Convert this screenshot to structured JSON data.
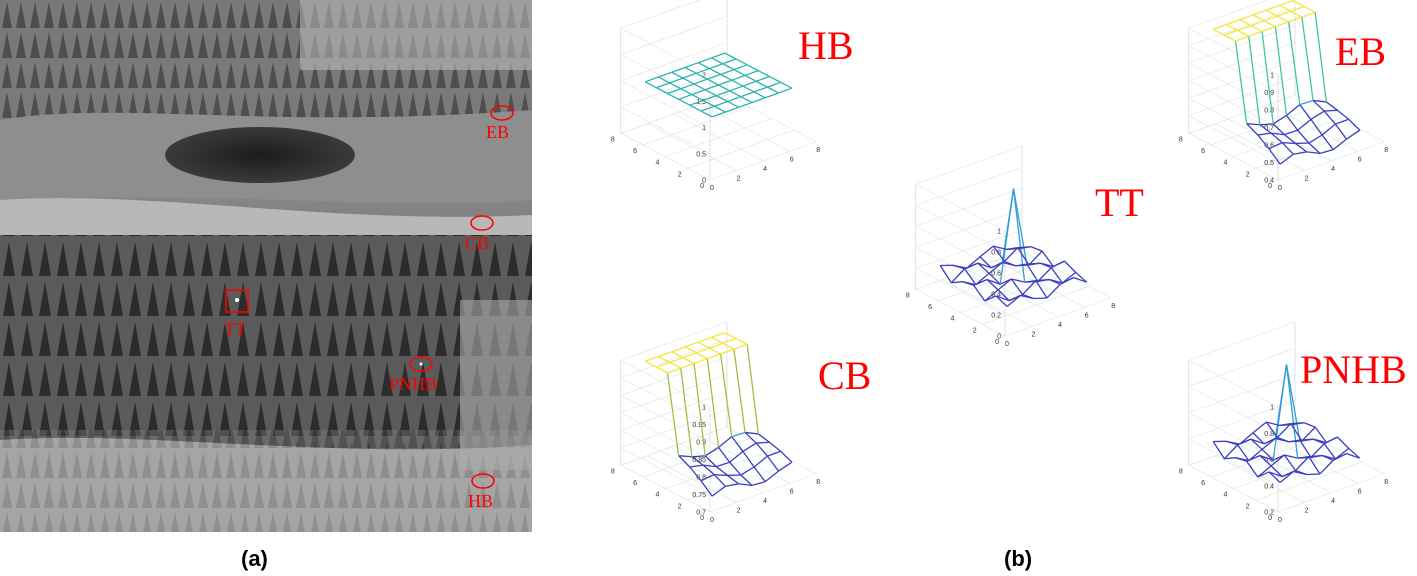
{
  "captions": {
    "a": "(a)",
    "b": "(b)"
  },
  "infrared_image": {
    "targets": [
      {
        "label": "EB",
        "marker": "ellipse"
      },
      {
        "label": "CB",
        "marker": "ellipse"
      },
      {
        "label": "TT",
        "marker": "rect"
      },
      {
        "label": "PNHB",
        "marker": "ellipse"
      },
      {
        "label": "HB",
        "marker": "ellipse"
      }
    ]
  },
  "chart_data": [
    {
      "type": "surface3d",
      "label": "HB",
      "zlim": [
        0,
        2
      ],
      "zticks": [
        "0",
        "0.5",
        "1",
        "1.5",
        "2"
      ],
      "xticks": [
        "0",
        "2",
        "4",
        "6",
        "8"
      ],
      "yticks": [
        "0",
        "2",
        "4",
        "6",
        "8"
      ],
      "surface": "flat",
      "z_value": 1,
      "colors": [
        "#2bb3b0"
      ]
    },
    {
      "type": "surface3d",
      "label": "EB",
      "zlim": [
        0.4,
        1
      ],
      "zticks": [
        "0.4",
        "0.5",
        "0.6",
        "0.7",
        "0.8",
        "0.9",
        "1"
      ],
      "xticks": [
        "0",
        "2",
        "4",
        "6",
        "8"
      ],
      "yticks": [
        "0",
        "2",
        "4",
        "6",
        "8"
      ],
      "surface": "step",
      "colors": [
        "#3b3fbf",
        "#2d9fd8",
        "#3fc89c",
        "#f5e63a"
      ]
    },
    {
      "type": "surface3d",
      "label": "TT",
      "zlim": [
        0,
        1
      ],
      "zticks": [
        "0",
        "0.2",
        "0.4",
        "0.6",
        "0.8",
        "1"
      ],
      "xticks": [
        "0",
        "2",
        "4",
        "6",
        "8"
      ],
      "yticks": [
        "0",
        "2",
        "4",
        "6",
        "8"
      ],
      "surface": "peak",
      "colors": [
        "#3b3fbf",
        "#2d9fd8",
        "#3fc89c"
      ]
    },
    {
      "type": "surface3d",
      "label": "CB",
      "zlim": [
        0.7,
        1
      ],
      "zticks": [
        "0.7",
        "0.75",
        "0.8",
        "0.85",
        "0.9",
        "0.95",
        "1"
      ],
      "xticks": [
        "0",
        "2",
        "4",
        "6",
        "8"
      ],
      "yticks": [
        "0",
        "2",
        "4",
        "6",
        "8"
      ],
      "surface": "step",
      "colors": [
        "#3b3fbf",
        "#2d9fd8",
        "#9dc04a",
        "#f5e63a"
      ]
    },
    {
      "type": "surface3d",
      "label": "PNHB",
      "zlim": [
        0.2,
        1
      ],
      "zticks": [
        "0.2",
        "0.4",
        "0.6",
        "0.8",
        "1"
      ],
      "xticks": [
        "0",
        "2",
        "4",
        "6",
        "8"
      ],
      "yticks": [
        "0",
        "2",
        "4",
        "6",
        "8"
      ],
      "surface": "peak",
      "colors": [
        "#3b3fbf",
        "#2d9fd8"
      ]
    }
  ]
}
